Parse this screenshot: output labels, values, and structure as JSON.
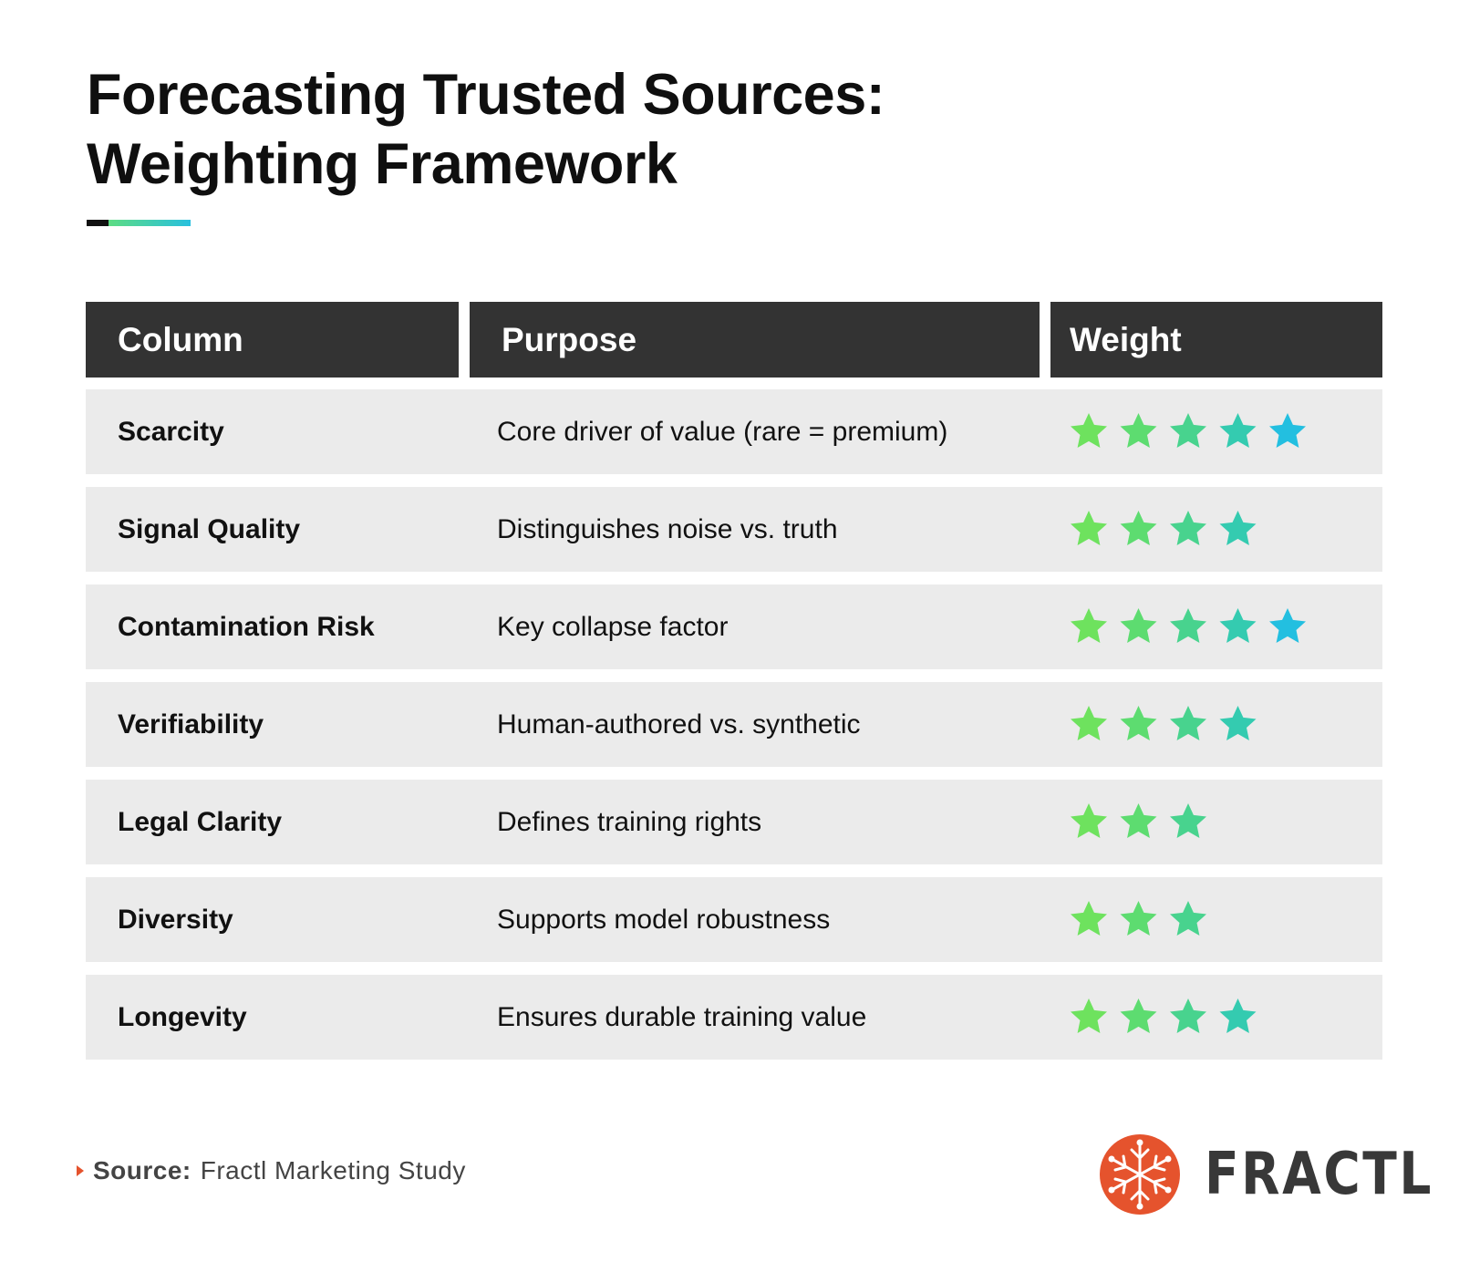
{
  "title": {
    "line1": "Forecasting Trusted Sources:",
    "line2": "Weighting Framework"
  },
  "table": {
    "headers": [
      "Column",
      "Purpose",
      "Weight"
    ],
    "rows": [
      {
        "name": "Scarcity",
        "purpose": "Core driver of value (rare = premium)",
        "stars": 5
      },
      {
        "name": "Signal Quality",
        "purpose": "Distinguishes noise vs. truth",
        "stars": 4
      },
      {
        "name": "Contamination Risk",
        "purpose": "Key collapse factor",
        "stars": 5
      },
      {
        "name": "Verifiability",
        "purpose": "Human-authored vs. synthetic",
        "stars": 4
      },
      {
        "name": "Legal Clarity",
        "purpose": "Defines training rights",
        "stars": 3
      },
      {
        "name": "Diversity",
        "purpose": "Supports model robustness",
        "stars": 3
      },
      {
        "name": "Longevity",
        "purpose": "Ensures durable training value",
        "stars": 4
      }
    ]
  },
  "star_colors": [
    "#6ee25e",
    "#5ddc70",
    "#48d38e",
    "#34cbb0",
    "#23bfe0"
  ],
  "colors": {
    "header_bg": "#333333",
    "row_bg": "#ebebeb",
    "brand_orange": "#e5532d"
  },
  "footer": {
    "source_label": "Source:",
    "source_text": "Fractl Marketing Study",
    "logo_text": "FRACTL"
  }
}
